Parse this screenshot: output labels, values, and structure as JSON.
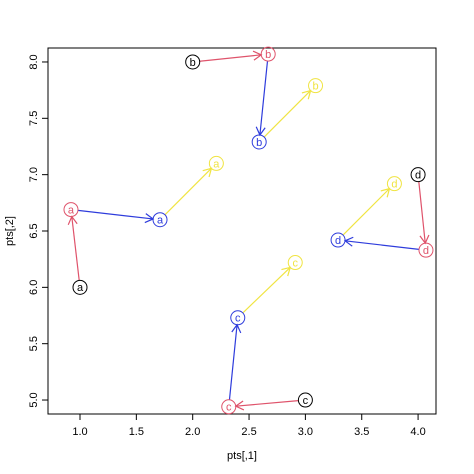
{
  "chart_data": {
    "type": "arrow-scatter",
    "xlabel": "pts[,1]",
    "ylabel": "pts[,2]",
    "labels": [
      "a",
      "b",
      "c",
      "d"
    ],
    "series": [
      {
        "color": "#000000",
        "x": [
          1.0,
          2.0,
          3.0,
          4.0
        ],
        "y": [
          6.0,
          8.0,
          5.0,
          7.0
        ]
      },
      {
        "color": "#df536b",
        "x": [
          0.92,
          2.67,
          2.32,
          4.07
        ],
        "y": [
          6.69,
          8.07,
          4.94,
          6.33
        ]
      },
      {
        "color": "#2e3cdc",
        "x": [
          1.71,
          2.59,
          2.4,
          3.29
        ],
        "y": [
          6.6,
          7.29,
          5.73,
          6.42
        ]
      },
      {
        "color": "#f0e442",
        "x": [
          2.21,
          3.09,
          2.91,
          3.79
        ],
        "y": [
          7.1,
          7.79,
          6.22,
          6.92
        ]
      }
    ],
    "xlim": [
      0.716,
      4.159
    ],
    "ylim": [
      4.876,
      8.124
    ],
    "xticks": [
      {
        "value": 1,
        "label": "1.0"
      },
      1.5,
      {
        "value": 2,
        "label": "2.0"
      },
      2.5,
      {
        "value": 3,
        "label": "3.0"
      },
      3.5,
      {
        "value": 4,
        "label": "4.0"
      }
    ],
    "yticks": [
      {
        "value": 5,
        "label": "5.0"
      },
      5.5,
      {
        "value": 6,
        "label": "6.0"
      },
      6.5,
      {
        "value": 7,
        "label": "7.0"
      },
      7.5,
      {
        "value": 8,
        "label": "8.0"
      }
    ]
  }
}
